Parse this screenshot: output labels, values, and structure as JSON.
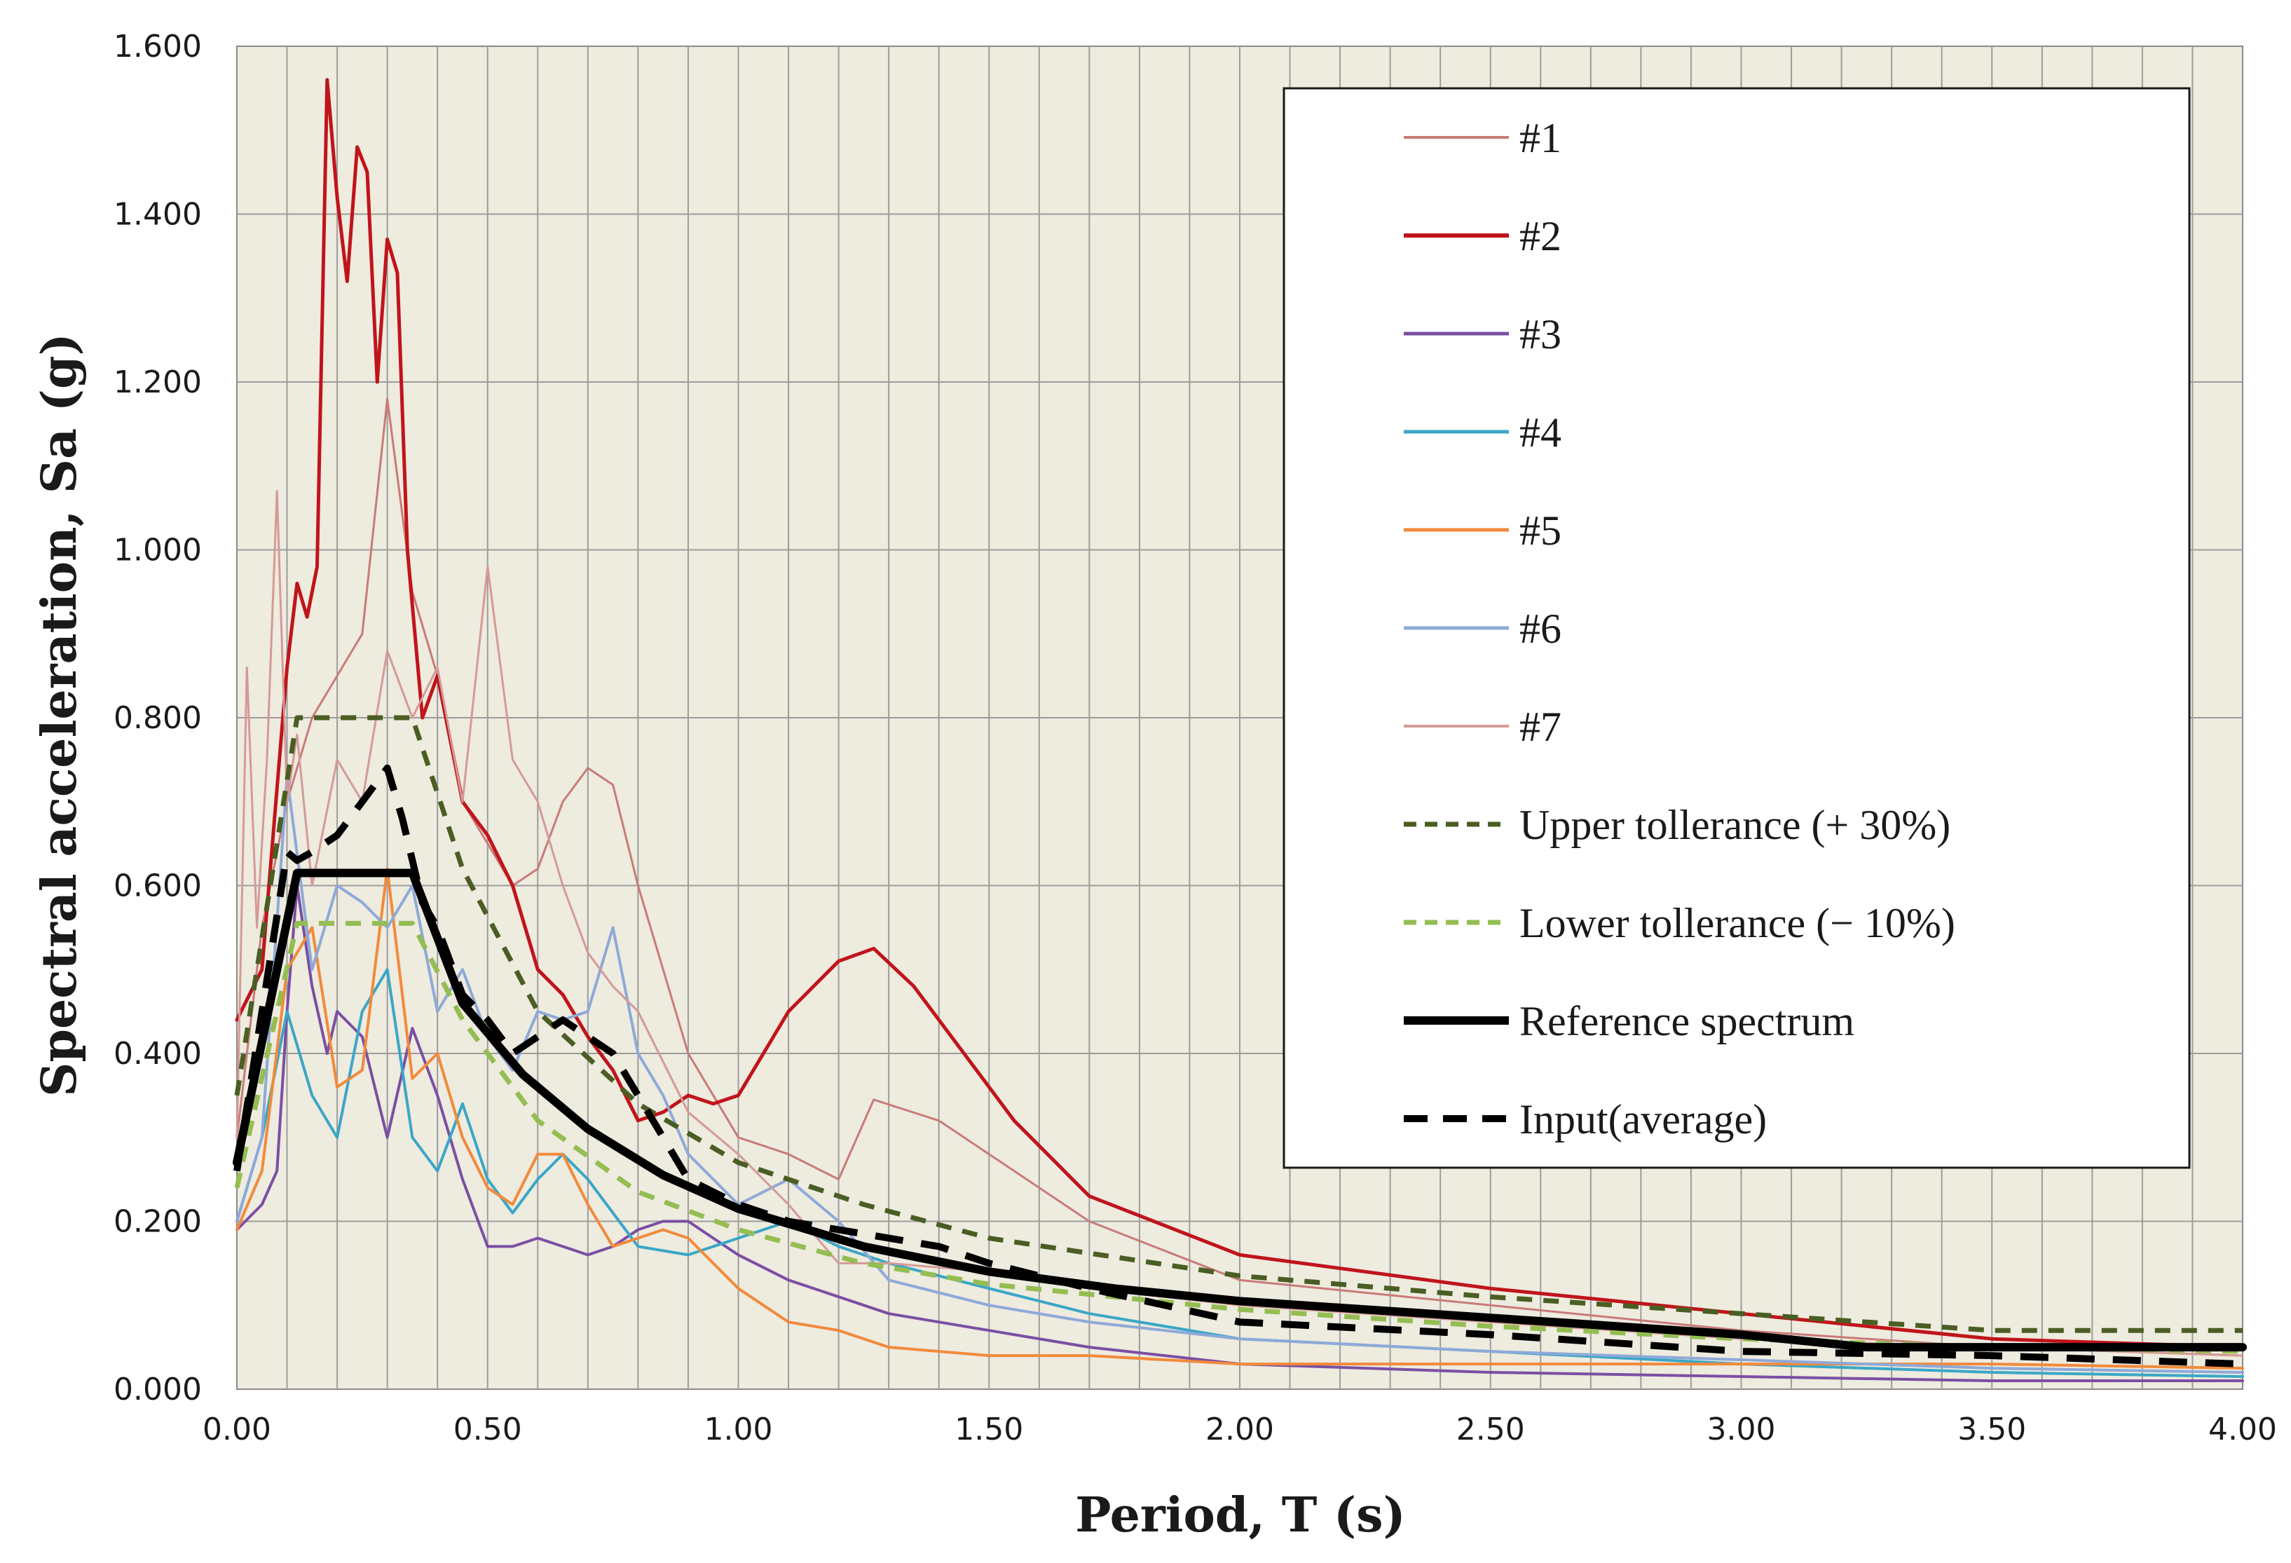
{
  "chart_data": {
    "type": "line",
    "title": "",
    "xlabel": "Period, T (s)",
    "ylabel": "Spectral acceleration, Sa (g)",
    "xlim": [
      0,
      4
    ],
    "ylim": [
      0,
      1.6
    ],
    "x_ticks": [
      "0.00",
      "0.50",
      "1.00",
      "1.50",
      "2.00",
      "2.50",
      "3.00",
      "3.50",
      "4.00"
    ],
    "y_ticks": [
      "0.000",
      "0.200",
      "0.400",
      "0.600",
      "0.800",
      "1.000",
      "1.200",
      "1.400",
      "1.600"
    ],
    "grid": true,
    "legend_position": "top-right",
    "series": [
      {
        "name": "#1",
        "color": "#c87b78",
        "width": 3,
        "dash": "",
        "x": [
          0,
          0.05,
          0.1,
          0.15,
          0.2,
          0.25,
          0.3,
          0.35,
          0.4,
          0.45,
          0.5,
          0.55,
          0.6,
          0.65,
          0.7,
          0.75,
          0.8,
          0.9,
          1.0,
          1.1,
          1.2,
          1.27,
          1.4,
          1.5,
          1.7,
          2.0,
          2.5,
          3.0,
          3.5,
          4.0
        ],
        "y": [
          0.3,
          0.55,
          0.7,
          0.8,
          0.85,
          0.9,
          1.18,
          0.95,
          0.85,
          0.7,
          0.65,
          0.6,
          0.62,
          0.7,
          0.74,
          0.72,
          0.6,
          0.4,
          0.3,
          0.28,
          0.25,
          0.345,
          0.32,
          0.28,
          0.2,
          0.13,
          0.1,
          0.07,
          0.05,
          0.04
        ]
      },
      {
        "name": "#2",
        "color": "#c0141b",
        "width": 5,
        "dash": "",
        "x": [
          0,
          0.05,
          0.1,
          0.12,
          0.14,
          0.16,
          0.18,
          0.2,
          0.22,
          0.24,
          0.26,
          0.28,
          0.3,
          0.32,
          0.34,
          0.37,
          0.4,
          0.45,
          0.5,
          0.55,
          0.6,
          0.65,
          0.7,
          0.75,
          0.8,
          0.85,
          0.9,
          0.95,
          1.0,
          1.05,
          1.1,
          1.2,
          1.27,
          1.35,
          1.45,
          1.55,
          1.7,
          2.0,
          2.5,
          3.0,
          3.5,
          4.0
        ],
        "y": [
          0.44,
          0.5,
          0.86,
          0.96,
          0.92,
          0.98,
          1.56,
          1.42,
          1.32,
          1.48,
          1.45,
          1.2,
          1.37,
          1.33,
          1.0,
          0.8,
          0.85,
          0.7,
          0.66,
          0.6,
          0.5,
          0.47,
          0.42,
          0.38,
          0.32,
          0.33,
          0.35,
          0.34,
          0.35,
          0.4,
          0.45,
          0.51,
          0.525,
          0.48,
          0.4,
          0.32,
          0.23,
          0.16,
          0.12,
          0.09,
          0.06,
          0.05
        ]
      },
      {
        "name": "#3",
        "color": "#7b4fa3",
        "width": 4,
        "dash": "",
        "x": [
          0,
          0.05,
          0.08,
          0.1,
          0.12,
          0.15,
          0.18,
          0.2,
          0.25,
          0.3,
          0.35,
          0.4,
          0.45,
          0.5,
          0.55,
          0.6,
          0.65,
          0.7,
          0.75,
          0.8,
          0.85,
          0.9,
          0.95,
          1.0,
          1.1,
          1.3,
          1.5,
          1.7,
          2.0,
          2.5,
          3.0,
          3.5,
          4.0
        ],
        "y": [
          0.19,
          0.22,
          0.26,
          0.45,
          0.6,
          0.48,
          0.4,
          0.45,
          0.42,
          0.3,
          0.43,
          0.35,
          0.25,
          0.17,
          0.17,
          0.18,
          0.17,
          0.16,
          0.17,
          0.19,
          0.2,
          0.2,
          0.18,
          0.16,
          0.13,
          0.09,
          0.07,
          0.05,
          0.03,
          0.02,
          0.015,
          0.01,
          0.01
        ]
      },
      {
        "name": "#4",
        "color": "#3aa7c6",
        "width": 4,
        "dash": "",
        "x": [
          0,
          0.05,
          0.1,
          0.15,
          0.2,
          0.25,
          0.3,
          0.35,
          0.4,
          0.45,
          0.5,
          0.55,
          0.6,
          0.65,
          0.7,
          0.75,
          0.8,
          0.9,
          1.0,
          1.1,
          1.2,
          1.3,
          1.5,
          1.7,
          2.0,
          2.5,
          3.0,
          3.5,
          4.0
        ],
        "y": [
          0.2,
          0.3,
          0.45,
          0.35,
          0.3,
          0.45,
          0.5,
          0.3,
          0.26,
          0.34,
          0.25,
          0.21,
          0.25,
          0.28,
          0.25,
          0.21,
          0.17,
          0.16,
          0.18,
          0.2,
          0.17,
          0.15,
          0.12,
          0.09,
          0.06,
          0.045,
          0.03,
          0.02,
          0.015
        ]
      },
      {
        "name": "#5",
        "color": "#f18a3c",
        "width": 4,
        "dash": "",
        "x": [
          0,
          0.05,
          0.1,
          0.15,
          0.2,
          0.25,
          0.3,
          0.35,
          0.4,
          0.45,
          0.5,
          0.55,
          0.6,
          0.65,
          0.7,
          0.75,
          0.8,
          0.85,
          0.9,
          1.0,
          1.1,
          1.2,
          1.3,
          1.5,
          1.7,
          2.0,
          2.5,
          3.0,
          3.5,
          4.0
        ],
        "y": [
          0.19,
          0.26,
          0.5,
          0.55,
          0.36,
          0.38,
          0.62,
          0.37,
          0.4,
          0.3,
          0.24,
          0.22,
          0.28,
          0.28,
          0.22,
          0.17,
          0.18,
          0.19,
          0.18,
          0.12,
          0.08,
          0.07,
          0.05,
          0.04,
          0.04,
          0.03,
          0.03,
          0.03,
          0.03,
          0.025
        ]
      },
      {
        "name": "#6",
        "color": "#8ea9d8",
        "width": 4,
        "dash": "",
        "x": [
          0,
          0.05,
          0.1,
          0.15,
          0.2,
          0.25,
          0.3,
          0.35,
          0.4,
          0.45,
          0.5,
          0.55,
          0.6,
          0.65,
          0.7,
          0.75,
          0.8,
          0.85,
          0.9,
          1.0,
          1.1,
          1.2,
          1.3,
          1.5,
          1.7,
          2.0,
          2.5,
          3.0,
          3.5,
          4.0
        ],
        "y": [
          0.2,
          0.3,
          0.73,
          0.5,
          0.6,
          0.58,
          0.55,
          0.6,
          0.45,
          0.5,
          0.42,
          0.38,
          0.45,
          0.44,
          0.45,
          0.55,
          0.4,
          0.35,
          0.28,
          0.22,
          0.25,
          0.2,
          0.13,
          0.1,
          0.08,
          0.06,
          0.045,
          0.035,
          0.025,
          0.02
        ]
      },
      {
        "name": "#7",
        "color": "#d49a98",
        "width": 3,
        "dash": "",
        "x": [
          0,
          0.02,
          0.04,
          0.06,
          0.08,
          0.1,
          0.12,
          0.15,
          0.2,
          0.25,
          0.3,
          0.35,
          0.4,
          0.45,
          0.5,
          0.55,
          0.6,
          0.65,
          0.7,
          0.75,
          0.8,
          0.9,
          1.0,
          1.1,
          1.2,
          1.3,
          1.5,
          1.7,
          2.0,
          2.5,
          3.0,
          3.5,
          4.0
        ],
        "y": [
          0.3,
          0.86,
          0.55,
          0.75,
          1.07,
          0.7,
          0.78,
          0.6,
          0.75,
          0.7,
          0.88,
          0.8,
          0.86,
          0.7,
          0.98,
          0.75,
          0.7,
          0.6,
          0.52,
          0.48,
          0.45,
          0.33,
          0.28,
          0.22,
          0.15,
          0.15,
          0.14,
          0.12,
          0.1,
          0.08,
          0.06,
          0.05,
          0.04
        ]
      },
      {
        "name": "Upper tollerance (+ 30%)",
        "color": "#4a5e23",
        "width": 7,
        "dash": "22,16",
        "x": [
          0,
          0.12,
          0.35,
          0.45,
          0.6,
          0.8,
          1.0,
          1.25,
          1.5,
          2.0,
          2.5,
          3.0,
          3.5,
          4.0
        ],
        "y": [
          0.35,
          0.8,
          0.8,
          0.62,
          0.45,
          0.34,
          0.27,
          0.22,
          0.18,
          0.135,
          0.11,
          0.09,
          0.07,
          0.07
        ]
      },
      {
        "name": "Lower tollerance (− 10%)",
        "color": "#94bd52",
        "width": 7,
        "dash": "22,16",
        "x": [
          0,
          0.12,
          0.35,
          0.45,
          0.6,
          0.8,
          1.0,
          1.25,
          1.5,
          2.0,
          2.5,
          3.0,
          3.5,
          4.0
        ],
        "y": [
          0.24,
          0.555,
          0.555,
          0.44,
          0.32,
          0.235,
          0.19,
          0.15,
          0.125,
          0.095,
          0.075,
          0.06,
          0.05,
          0.045
        ]
      },
      {
        "name": "Reference spectrum",
        "color": "#000000",
        "width": 12,
        "dash": "",
        "x": [
          0,
          0.12,
          0.35,
          0.45,
          0.57,
          0.7,
          0.85,
          1.0,
          1.25,
          1.5,
          1.75,
          2.0,
          2.5,
          3.0,
          3.25,
          3.5,
          4.0
        ],
        "y": [
          0.27,
          0.615,
          0.615,
          0.46,
          0.375,
          0.31,
          0.255,
          0.215,
          0.17,
          0.14,
          0.12,
          0.105,
          0.085,
          0.065,
          0.05,
          0.05,
          0.05
        ]
      },
      {
        "name": "Input(average)",
        "color": "#000000",
        "width": 10,
        "dash": "40,26",
        "x": [
          0,
          0.05,
          0.1,
          0.12,
          0.15,
          0.2,
          0.25,
          0.3,
          0.33,
          0.37,
          0.4,
          0.45,
          0.5,
          0.55,
          0.6,
          0.65,
          0.7,
          0.75,
          0.8,
          0.85,
          0.9,
          1.0,
          1.1,
          1.2,
          1.3,
          1.4,
          1.5,
          1.7,
          2.0,
          2.5,
          3.0,
          3.5,
          4.0
        ],
        "y": [
          0.26,
          0.45,
          0.64,
          0.63,
          0.64,
          0.66,
          0.7,
          0.74,
          0.68,
          0.58,
          0.55,
          0.47,
          0.44,
          0.4,
          0.42,
          0.44,
          0.42,
          0.4,
          0.35,
          0.3,
          0.25,
          0.22,
          0.2,
          0.19,
          0.18,
          0.17,
          0.15,
          0.12,
          0.08,
          0.065,
          0.045,
          0.04,
          0.03
        ]
      }
    ]
  }
}
